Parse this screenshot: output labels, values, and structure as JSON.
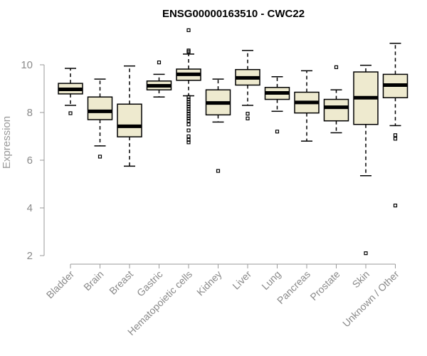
{
  "chart_data": {
    "type": "boxplot",
    "title": "ENSG00000163510 - CWC22",
    "xlabel": "",
    "ylabel": "Expression",
    "ylim": [
      2,
      11.5
    ],
    "yticks": [
      2,
      4,
      6,
      8,
      10
    ],
    "grid": false,
    "box_fill": "#eeeacf",
    "box_stroke": "#000000",
    "categories": [
      "Bladder",
      "Brain",
      "Breast",
      "Gastric",
      "Hematopoietic cells",
      "Kidney",
      "Liver",
      "Lung",
      "Pancreas",
      "Prostate",
      "Skin",
      "Unknown / Other"
    ],
    "boxes": [
      {
        "category": "Bladder",
        "whisker_low": 8.3,
        "q1": 8.78,
        "median": 8.97,
        "q3": 9.22,
        "whisker_high": 9.85,
        "outliers": [
          7.97
        ]
      },
      {
        "category": "Brain",
        "whisker_low": 6.6,
        "q1": 7.7,
        "median": 8.05,
        "q3": 8.65,
        "whisker_high": 9.4,
        "outliers": [
          6.15
        ]
      },
      {
        "category": "Breast",
        "whisker_low": 5.75,
        "q1": 6.98,
        "median": 7.42,
        "q3": 8.35,
        "whisker_high": 9.95,
        "outliers": []
      },
      {
        "category": "Gastric",
        "whisker_low": 8.65,
        "q1": 8.95,
        "median": 9.12,
        "q3": 9.32,
        "whisker_high": 9.6,
        "outliers": [
          10.1
        ]
      },
      {
        "category": "Hematopoietic cells",
        "whisker_low": 8.7,
        "q1": 9.35,
        "median": 9.6,
        "q3": 9.82,
        "whisker_high": 10.45,
        "outliers": [
          11.45,
          10.6,
          10.55,
          8.65,
          8.55,
          8.45,
          8.35,
          8.25,
          8.15,
          8.05,
          7.95,
          7.85,
          7.75,
          7.65,
          7.5,
          7.25,
          7.0,
          6.85,
          6.75
        ]
      },
      {
        "category": "Kidney",
        "whisker_low": 7.6,
        "q1": 7.9,
        "median": 8.4,
        "q3": 8.95,
        "whisker_high": 9.4,
        "outliers": [
          5.55
        ]
      },
      {
        "category": "Liver",
        "whisker_low": 8.3,
        "q1": 9.15,
        "median": 9.45,
        "q3": 9.8,
        "whisker_high": 10.6,
        "outliers": [
          7.95,
          7.75
        ]
      },
      {
        "category": "Lung",
        "whisker_low": 8.05,
        "q1": 8.55,
        "median": 8.82,
        "q3": 9.05,
        "whisker_high": 9.5,
        "outliers": [
          7.2
        ]
      },
      {
        "category": "Pancreas",
        "whisker_low": 6.8,
        "q1": 7.98,
        "median": 8.42,
        "q3": 8.85,
        "whisker_high": 9.75,
        "outliers": []
      },
      {
        "category": "Prostate",
        "whisker_low": 7.15,
        "q1": 7.65,
        "median": 8.22,
        "q3": 8.55,
        "whisker_high": 8.95,
        "outliers": [
          9.9
        ]
      },
      {
        "category": "Skin",
        "whisker_low": 5.35,
        "q1": 7.5,
        "median": 8.62,
        "q3": 9.7,
        "whisker_high": 9.98,
        "outliers": [
          2.1
        ]
      },
      {
        "category": "Unknown / Other",
        "whisker_low": 7.45,
        "q1": 8.62,
        "median": 9.15,
        "q3": 9.6,
        "whisker_high": 10.9,
        "outliers": [
          7.05,
          6.9,
          4.1
        ]
      }
    ]
  }
}
